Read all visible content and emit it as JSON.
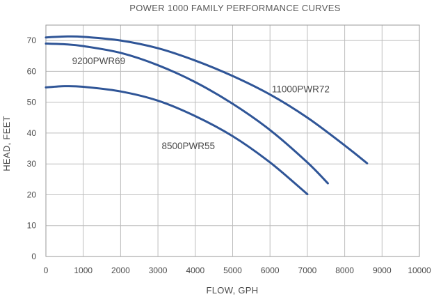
{
  "chart_data": {
    "type": "line",
    "title": "POWER 1000 FAMILY PERFORMANCE CURVES",
    "xlabel": "FLOW, GPH",
    "ylabel": "HEAD, FEET",
    "xlim": [
      0,
      10000
    ],
    "ylim": [
      0,
      75
    ],
    "xticks": [
      0,
      1000,
      2000,
      3000,
      4000,
      5000,
      6000,
      7000,
      8000,
      9000,
      10000
    ],
    "yticks": [
      0,
      10,
      20,
      30,
      40,
      50,
      60,
      70
    ],
    "grid": true,
    "legend": "none",
    "series_color": "#2f5597",
    "series": [
      {
        "name": "11000PWR72",
        "x": [
          0,
          500,
          1000,
          2000,
          3000,
          4000,
          5000,
          6000,
          7000,
          8000,
          8600
        ],
        "y": [
          71,
          71.3,
          71.2,
          70,
          67.5,
          63.5,
          58.5,
          52.5,
          45,
          36,
          30.2
        ]
      },
      {
        "name": "9200PWR69",
        "x": [
          0,
          500,
          1000,
          2000,
          3000,
          4000,
          5000,
          6000,
          7000,
          7550
        ],
        "y": [
          69,
          68.8,
          68.2,
          66,
          62,
          56.5,
          49.5,
          41,
          30.5,
          23.7
        ]
      },
      {
        "name": "8500PWR55",
        "x": [
          0,
          500,
          1000,
          2000,
          3000,
          4000,
          5000,
          6000,
          7000
        ],
        "y": [
          54.8,
          55.2,
          55,
          53.5,
          50.5,
          45.5,
          39,
          30.5,
          20.2
        ]
      }
    ],
    "annotations": [
      {
        "text": "9200PWR69",
        "x": 700,
        "y": 62.3
      },
      {
        "text": "11000PWR72",
        "x": 6050,
        "y": 53.2
      },
      {
        "text": "8500PWR55",
        "x": 3100,
        "y": 34.8
      }
    ]
  }
}
